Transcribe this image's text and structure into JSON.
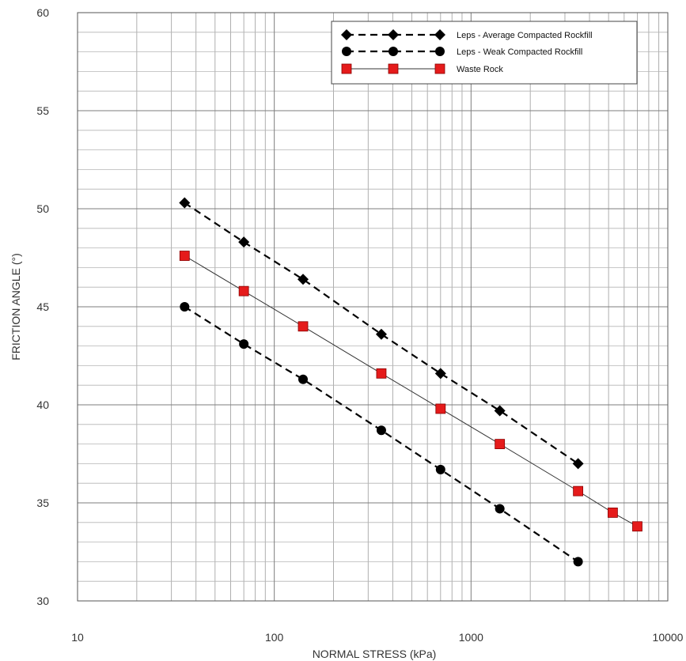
{
  "chart_data": {
    "type": "scatter",
    "xlabel": "NORMAL STRESS (kPa)",
    "ylabel": "FRICTION ANGLE (°)",
    "x_scale": "log",
    "xlim": [
      10,
      10000
    ],
    "ylim": [
      30,
      60
    ],
    "x_ticks": [
      10,
      100,
      1000,
      10000
    ],
    "x_tick_labels": [
      "10",
      "100",
      "1000",
      "10000"
    ],
    "y_ticks": [
      30,
      35,
      40,
      45,
      50,
      55,
      60
    ],
    "y_tick_labels": [
      "30",
      "35",
      "40",
      "45",
      "50",
      "55",
      "60"
    ],
    "grid": true,
    "legend_position": "top-right",
    "series": [
      {
        "name": "Leps - Average Compacted Rockfill",
        "marker": "diamond",
        "line": "dashed",
        "color": "#000000",
        "x": [
          35,
          70,
          140,
          350,
          700,
          1400,
          3500
        ],
        "y": [
          50.3,
          48.3,
          46.4,
          43.6,
          41.6,
          39.7,
          37.0
        ]
      },
      {
        "name": "Leps - Weak Compacted Rockfill",
        "marker": "circle",
        "line": "dashed",
        "color": "#000000",
        "x": [
          35,
          70,
          140,
          350,
          700,
          1400,
          3500
        ],
        "y": [
          45.0,
          43.1,
          41.3,
          38.7,
          36.7,
          34.7,
          32.0
        ]
      },
      {
        "name": "Waste Rock",
        "marker": "square",
        "line": "solid",
        "color": "#e51b1b",
        "x": [
          35,
          70,
          140,
          350,
          700,
          1400,
          3500,
          5250,
          7000
        ],
        "y": [
          47.6,
          45.8,
          44.0,
          41.6,
          39.8,
          38.0,
          35.6,
          34.5,
          33.8
        ]
      }
    ]
  }
}
